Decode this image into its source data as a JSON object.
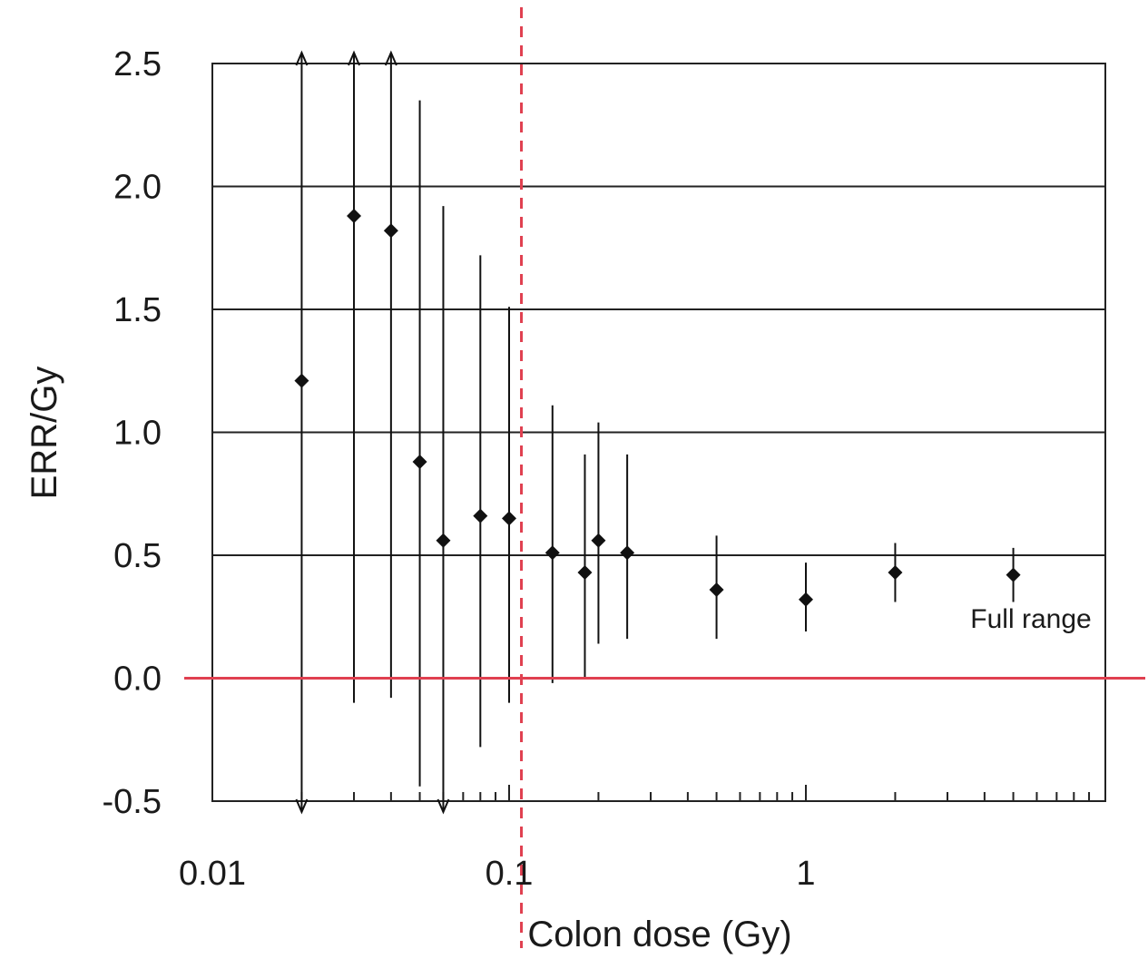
{
  "chart_data": {
    "type": "scatter",
    "xlabel": "Colon dose (Gy)",
    "ylabel": "ERR/Gy",
    "x_scale": "log",
    "xlim": [
      0.01,
      9
    ],
    "ylim": [
      -0.5,
      2.5
    ],
    "x_ticks": [
      {
        "value": 0.01,
        "label": "0.01"
      },
      {
        "value": 0.1,
        "label": "0.1"
      },
      {
        "value": 1,
        "label": "1"
      }
    ],
    "y_ticks": [
      {
        "value": -0.5,
        "label": "-0.5"
      },
      {
        "value": 0,
        "label": "0.0"
      },
      {
        "value": 0.5,
        "label": "0.5"
      },
      {
        "value": 1,
        "label": "1.0"
      },
      {
        "value": 1.5,
        "label": "1.5"
      },
      {
        "value": 2,
        "label": "2.0"
      },
      {
        "value": 2.5,
        "label": "2.5"
      }
    ],
    "grid": "horizontal",
    "annotation": "Full range",
    "points": [
      {
        "x": 0.02,
        "y": 1.21,
        "lower": -0.5,
        "upper": 2.5,
        "lower_arrow": true,
        "upper_arrow": true
      },
      {
        "x": 0.03,
        "y": 1.88,
        "lower": -0.1,
        "upper": 2.5,
        "upper_arrow": true
      },
      {
        "x": 0.04,
        "y": 1.82,
        "lower": -0.08,
        "upper": 2.5,
        "upper_arrow": true
      },
      {
        "x": 0.05,
        "y": 0.88,
        "lower": -0.44,
        "upper": 2.35
      },
      {
        "x": 0.06,
        "y": 0.56,
        "lower": -0.5,
        "upper": 1.92,
        "lower_arrow": true
      },
      {
        "x": 0.08,
        "y": 0.66,
        "lower": -0.28,
        "upper": 1.72
      },
      {
        "x": 0.1,
        "y": 0.65,
        "lower": -0.1,
        "upper": 1.51
      },
      {
        "x": 0.14,
        "y": 0.51,
        "lower": -0.02,
        "upper": 1.11
      },
      {
        "x": 0.18,
        "y": 0.43,
        "lower": 0.0,
        "upper": 0.91
      },
      {
        "x": 0.2,
        "y": 0.56,
        "lower": 0.14,
        "upper": 1.04
      },
      {
        "x": 0.25,
        "y": 0.51,
        "lower": 0.16,
        "upper": 0.91
      },
      {
        "x": 0.5,
        "y": 0.36,
        "lower": 0.16,
        "upper": 0.58
      },
      {
        "x": 1.0,
        "y": 0.32,
        "lower": 0.19,
        "upper": 0.47
      },
      {
        "x": 2.0,
        "y": 0.43,
        "lower": 0.31,
        "upper": 0.55
      },
      {
        "x": 5.0,
        "y": 0.42,
        "lower": 0.31,
        "upper": 0.53
      }
    ],
    "reference_lines": [
      {
        "orientation": "horizontal",
        "value": 0,
        "style": "solid",
        "color": "#e04050"
      },
      {
        "orientation": "vertical",
        "value": 0.11,
        "style": "dashed",
        "color": "#e04050"
      }
    ],
    "marker_color": "#111111",
    "line_color": "#111111"
  }
}
